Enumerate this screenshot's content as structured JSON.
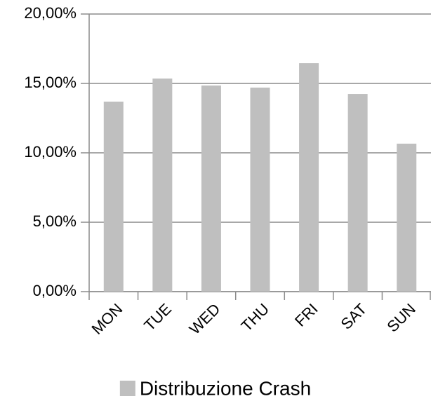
{
  "chart_data": {
    "type": "bar",
    "categories": [
      "MON",
      "TUE",
      "WED",
      "THU",
      "FRI",
      "SAT",
      "SUN"
    ],
    "series": [
      {
        "name": "Distribuzione Crash",
        "color": "#bfbfbf",
        "values": [
          13.69,
          15.35,
          14.85,
          14.7,
          16.46,
          14.24,
          10.66
        ]
      }
    ],
    "ylim": [
      0,
      20
    ],
    "yticks": [
      {
        "value": 0,
        "label": "0,00%"
      },
      {
        "value": 5,
        "label": "5,00%"
      },
      {
        "value": 10,
        "label": "10,00%"
      },
      {
        "value": 15,
        "label": "15,00%"
      },
      {
        "value": 20,
        "label": "20,00%"
      }
    ],
    "grid": true,
    "legend": "bottom"
  }
}
